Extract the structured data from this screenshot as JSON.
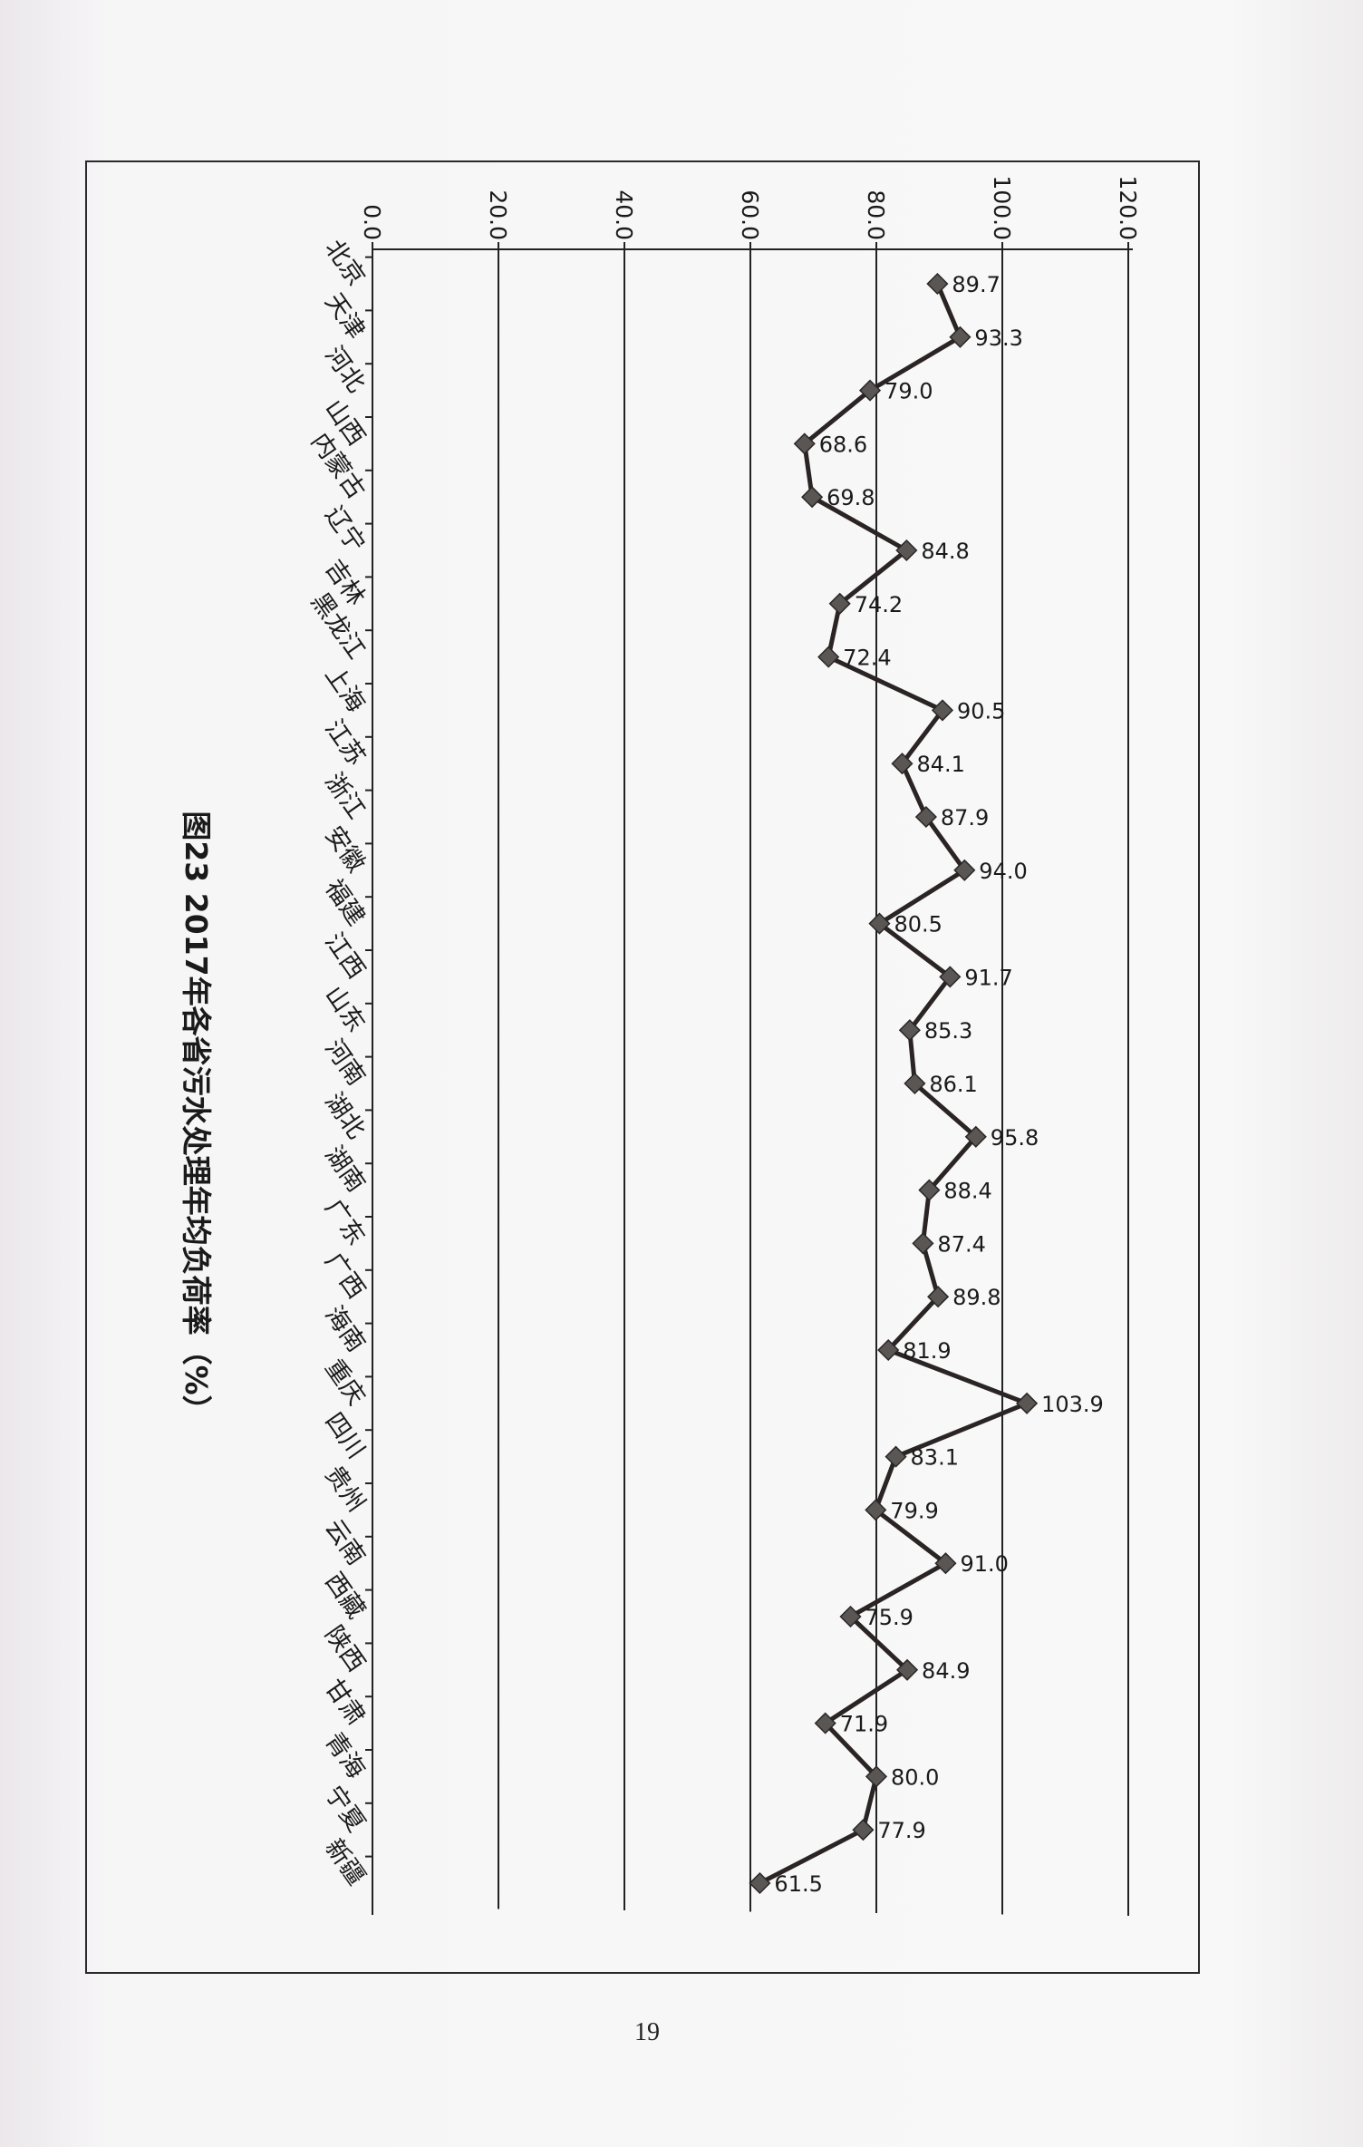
{
  "chart_data": {
    "type": "line",
    "title": "图23 2017年各省污水处理年均负荷率（%）",
    "orientation": "rotated 90 degrees clockwise on page",
    "categories": [
      "北京",
      "天津",
      "河北",
      "山西",
      "内蒙古",
      "辽宁",
      "吉林",
      "黑龙江",
      "上海",
      "江苏",
      "浙江",
      "安徽",
      "福建",
      "江西",
      "山东",
      "河南",
      "湖北",
      "湖南",
      "广东",
      "广西",
      "海南",
      "重庆",
      "四川",
      "贵州",
      "云南",
      "西藏",
      "陕西",
      "甘肃",
      "青海",
      "宁夏",
      "新疆"
    ],
    "values": [
      89.7,
      93.3,
      79.0,
      68.6,
      69.8,
      84.8,
      74.2,
      72.4,
      90.5,
      84.1,
      87.9,
      94.0,
      80.5,
      91.7,
      85.3,
      86.1,
      95.8,
      88.4,
      87.4,
      89.8,
      81.9,
      103.9,
      83.1,
      79.9,
      91.0,
      75.9,
      84.9,
      71.9,
      80.0,
      77.9,
      61.5
    ],
    "data_labels": [
      "89.7",
      "93.3",
      "79.0",
      "68.6",
      "69.8",
      "84.8",
      "74.2",
      "72.4",
      "90.5",
      "84.1",
      "87.9",
      "94.0",
      "80.5",
      "91.7",
      "85.3",
      "86.1",
      "95.8",
      "88.4",
      "87.4",
      "89.8",
      "81.9",
      "103.9",
      "83.1",
      "79.9",
      "91.0",
      "75.9",
      "84.9",
      "71.9",
      "80.0",
      "77.9",
      "61.5"
    ],
    "value_axis": {
      "range": [
        0,
        120
      ],
      "ticks": [
        "0.0",
        "20.0",
        "40.0",
        "60.0",
        "80.0",
        "100.0",
        "120.0"
      ]
    },
    "grid": true,
    "marker": "diamond",
    "colors": {
      "line": "#2b2424",
      "marker": "#5a5654"
    }
  },
  "page": {
    "number": "19"
  }
}
